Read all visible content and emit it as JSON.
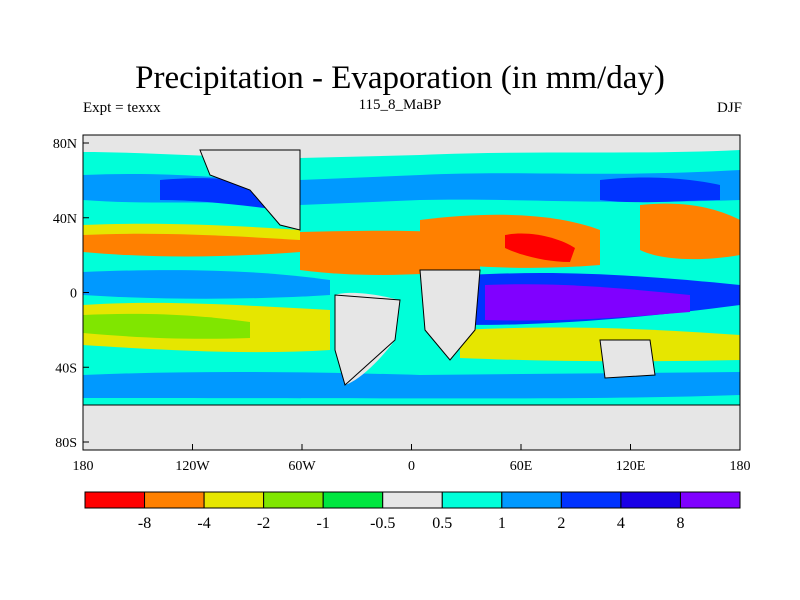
{
  "title": "Precipitation - Evaporation (in mm/day)",
  "subtitle_left": "Expt = texxx",
  "subtitle_center": "115_8_MaBP",
  "subtitle_right": "DJF",
  "axes": {
    "x_ticks": [
      "180",
      "120W",
      "60W",
      "0",
      "60E",
      "120E",
      "180"
    ],
    "y_ticks": [
      "80N",
      "40N",
      "0",
      "40S",
      "80S"
    ]
  },
  "colorbar": {
    "colors": [
      "#ff0000",
      "#ff8000",
      "#e6e600",
      "#80e600",
      "#00e640",
      "#e6e6e6",
      "#00ffd9",
      "#0099ff",
      "#0033ff",
      "#1a00e6",
      "#8000ff"
    ],
    "labels": [
      "-8",
      "-4",
      "-2",
      "-1",
      "-0.5",
      "0.5",
      "1",
      "2",
      "4",
      "8"
    ]
  },
  "colors": {
    "ocean_base": "#00ffd9",
    "land_base": "#e6e6e6",
    "coastline": "#000000"
  }
}
